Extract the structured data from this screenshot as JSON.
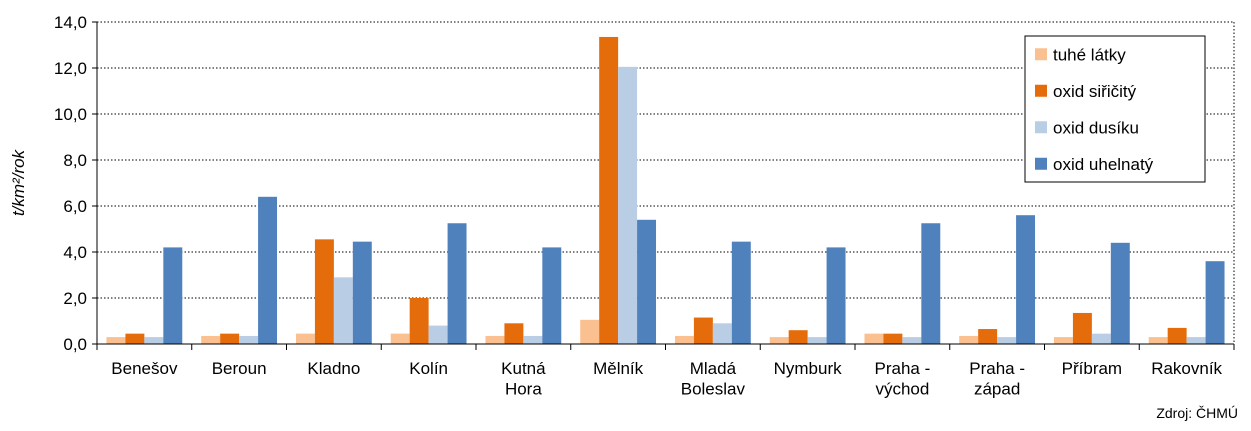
{
  "chart_data": {
    "type": "bar",
    "y_label": "t/km²/rok",
    "source": "Zdroj: ČHMÚ",
    "categories": [
      "Benešov",
      "Beroun",
      "Kladno",
      "Kolín",
      "Kutná\nHora",
      "Mělník",
      "Mladá\nBoleslav",
      "Nymburk",
      "Praha -\nvýchod",
      "Praha -\nzápad",
      "Příbram",
      "Rakovník"
    ],
    "series": [
      {
        "name": "tuhé látky",
        "color": "#fac090",
        "values": [
          0.3,
          0.35,
          0.45,
          0.45,
          0.35,
          1.05,
          0.35,
          0.3,
          0.45,
          0.35,
          0.3,
          0.3
        ]
      },
      {
        "name": "oxid siřičitý",
        "color": "#e46c0a",
        "values": [
          0.45,
          0.45,
          4.55,
          2.0,
          0.9,
          13.35,
          1.15,
          0.6,
          0.45,
          0.65,
          1.35,
          0.7
        ]
      },
      {
        "name": "oxid dusíku",
        "color": "#b9cde5",
        "values": [
          0.3,
          0.35,
          2.9,
          0.8,
          0.35,
          12.05,
          0.9,
          0.3,
          0.3,
          0.3,
          0.45,
          0.3
        ]
      },
      {
        "name": "oxid uhelnatý",
        "color": "#4f81bd",
        "values": [
          4.2,
          6.4,
          4.45,
          5.25,
          4.2,
          5.4,
          4.45,
          4.2,
          5.25,
          5.6,
          4.4,
          3.6
        ]
      }
    ],
    "ylim": [
      0,
      14
    ],
    "yticks": [
      {
        "value": 0,
        "label": "0,0"
      },
      {
        "value": 2,
        "label": "2,0"
      },
      {
        "value": 4,
        "label": "4,0"
      },
      {
        "value": 6,
        "label": "6,0"
      },
      {
        "value": 8,
        "label": "8,0"
      },
      {
        "value": 10,
        "label": "10,0"
      },
      {
        "value": 12,
        "label": "12,0"
      },
      {
        "value": 14,
        "label": "14,0"
      }
    ],
    "grid": true,
    "legend": "top-right"
  }
}
